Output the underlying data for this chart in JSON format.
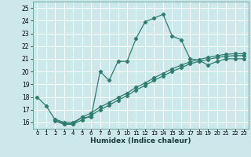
{
  "xlabel": "Humidex (Indice chaleur)",
  "bg_color": "#cde8ea",
  "grid_color": "#ffffff",
  "line_color": "#2e7d6e",
  "xlim": [
    -0.5,
    23.5
  ],
  "ylim": [
    15.5,
    25.5
  ],
  "yticks": [
    16,
    17,
    18,
    19,
    20,
    21,
    22,
    23,
    24,
    25
  ],
  "xticks": [
    0,
    1,
    2,
    3,
    4,
    5,
    6,
    7,
    8,
    9,
    10,
    11,
    12,
    13,
    14,
    15,
    16,
    17,
    18,
    19,
    20,
    21,
    22,
    23
  ],
  "series": [
    [
      18.0,
      17.3,
      16.2,
      15.9,
      15.9,
      16.4,
      16.4,
      20.0,
      19.3,
      20.8,
      20.8,
      22.6,
      23.9,
      24.2,
      24.5,
      22.8,
      22.5,
      21.0,
      20.9,
      20.5,
      20.8,
      21.0,
      21.0,
      21.0
    ],
    [
      null,
      null,
      16.1,
      15.85,
      15.85,
      16.2,
      16.55,
      17.0,
      17.35,
      17.75,
      18.1,
      18.55,
      18.9,
      19.3,
      19.65,
      20.0,
      20.3,
      20.6,
      20.8,
      20.95,
      21.1,
      21.2,
      21.25,
      21.25
    ],
    [
      null,
      null,
      16.25,
      16.0,
      16.0,
      16.4,
      16.75,
      17.2,
      17.55,
      17.95,
      18.3,
      18.75,
      19.1,
      19.5,
      19.85,
      20.2,
      20.5,
      20.75,
      20.95,
      21.1,
      21.25,
      21.35,
      21.4,
      21.4
    ]
  ]
}
